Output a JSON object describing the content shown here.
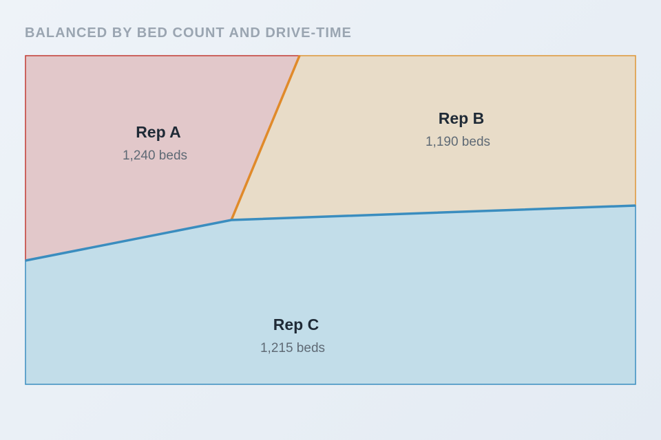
{
  "title": "BALANCED BY BED COUNT AND DRIVE-TIME",
  "regions": [
    {
      "name": "Rep A",
      "beds": "1,240 beds"
    },
    {
      "name": "Rep B",
      "beds": "1,190 beds"
    },
    {
      "name": "Rep C",
      "beds": "1,215 beds"
    }
  ]
}
